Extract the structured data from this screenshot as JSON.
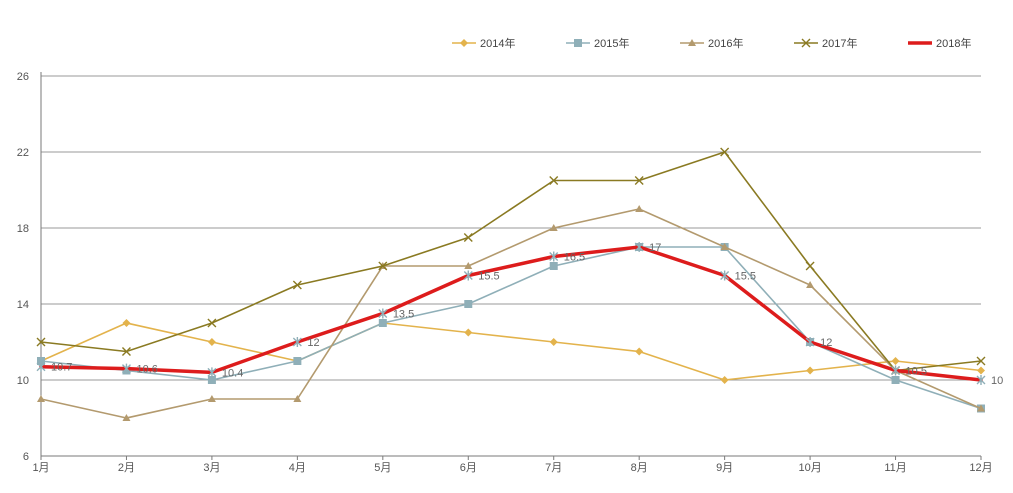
{
  "chart_data": {
    "type": "line",
    "title": "",
    "xlabel": "",
    "ylabel": "",
    "categories": [
      "1月",
      "2月",
      "3月",
      "4月",
      "5月",
      "6月",
      "7月",
      "8月",
      "9月",
      "10月",
      "11月",
      "12月"
    ],
    "y_ticks": [
      6,
      10,
      14,
      18,
      22,
      26
    ],
    "ylim": [
      6,
      26
    ],
    "grid": "horizontal",
    "legend_position": "top-right",
    "series": [
      {
        "name": "2014年",
        "color": "#e3b34c",
        "marker": "diamond",
        "width": 1.6,
        "values": [
          11,
          13,
          12,
          11,
          13,
          12.5,
          12,
          11.5,
          10,
          10.5,
          11,
          10.5
        ]
      },
      {
        "name": "2015年",
        "color": "#8fafb8",
        "marker": "square",
        "width": 1.6,
        "values": [
          11,
          10.5,
          10,
          11,
          13,
          14,
          16,
          17,
          17,
          12,
          10,
          8.5
        ]
      },
      {
        "name": "2016年",
        "color": "#b39a6e",
        "marker": "triangle",
        "width": 1.6,
        "values": [
          9,
          8,
          9,
          9,
          16,
          16,
          18,
          19,
          17,
          15,
          10.5,
          8.5
        ]
      },
      {
        "name": "2017年",
        "color": "#8a7a22",
        "marker": "x",
        "width": 1.6,
        "values": [
          12,
          11.5,
          13,
          15,
          16,
          17.5,
          20.5,
          20.5,
          22,
          16,
          10.5,
          11
        ]
      },
      {
        "name": "2018年",
        "color": "#dd1c1c",
        "marker": "star",
        "width": 3.5,
        "values": [
          10.7,
          10.6,
          10.4,
          12,
          13.5,
          15.5,
          16.5,
          17,
          15.5,
          12,
          10.5,
          10
        ]
      }
    ],
    "data_labels": [
      {
        "series": "2018年",
        "index": 0,
        "text": "10.7"
      },
      {
        "series": "2018年",
        "index": 1,
        "text": "10.6"
      },
      {
        "series": "2018年",
        "index": 2,
        "text": "10.4"
      },
      {
        "series": "2018年",
        "index": 3,
        "text": "12"
      },
      {
        "series": "2018年",
        "index": 4,
        "text": "13.5"
      },
      {
        "series": "2018年",
        "index": 5,
        "text": "15.5"
      },
      {
        "series": "2018年",
        "index": 6,
        "text": "16.5"
      },
      {
        "series": "2018年",
        "index": 7,
        "text": "17"
      },
      {
        "series": "2018年",
        "index": 8,
        "text": "15.5"
      },
      {
        "series": "2018年",
        "index": 9,
        "text": "12"
      },
      {
        "series": "2018年",
        "index": 10,
        "text": "10.5"
      },
      {
        "series": "2018年",
        "index": 11,
        "text": "10"
      }
    ]
  }
}
